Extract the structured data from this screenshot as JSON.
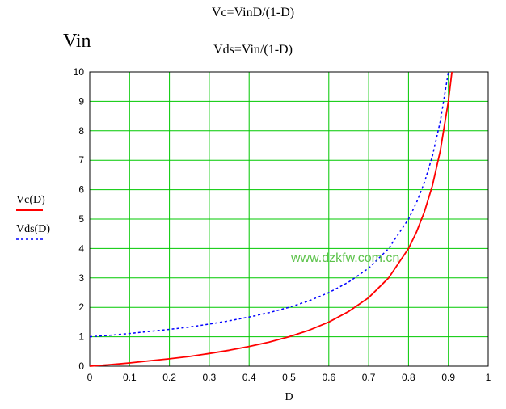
{
  "formulas": [
    "Vc=VinD/(1-D)",
    "Vds=Vin/(1-D)"
  ],
  "watermark": "www.dzkfw.com.cn",
  "colors": {
    "grid": "#00c800",
    "vc": "#ff0000",
    "vds": "#0000ff",
    "watermark": "#5cc24a"
  },
  "chart_data": {
    "type": "line",
    "title": "",
    "xlabel": "D",
    "ylabel": "Vin",
    "xlim": [
      0,
      1
    ],
    "ylim": [
      0,
      10
    ],
    "x_ticks": [
      "0",
      "0.1",
      "0.2",
      "0.3",
      "0.4",
      "0.5",
      "0.6",
      "0.7",
      "0.8",
      "0.9",
      "1"
    ],
    "y_ticks": [
      "0",
      "1",
      "2",
      "3",
      "4",
      "5",
      "6",
      "7",
      "8",
      "9",
      "10"
    ],
    "grid": true,
    "legend_position": "left",
    "x": [
      0,
      0.05,
      0.1,
      0.15,
      0.2,
      0.25,
      0.3,
      0.35,
      0.4,
      0.45,
      0.5,
      0.55,
      0.6,
      0.65,
      0.7,
      0.75,
      0.8,
      0.82,
      0.84,
      0.86,
      0.88,
      0.9,
      0.909
    ],
    "series": [
      {
        "name": "Vc(D)",
        "style": "solid",
        "values": [
          0,
          0.05,
          0.11,
          0.18,
          0.25,
          0.33,
          0.43,
          0.54,
          0.67,
          0.82,
          1,
          1.22,
          1.5,
          1.86,
          2.33,
          3,
          4,
          4.56,
          5.25,
          6.14,
          7.33,
          9,
          10
        ]
      },
      {
        "name": "Vds(D)",
        "style": "dotted",
        "values": [
          1,
          1.05,
          1.11,
          1.18,
          1.25,
          1.33,
          1.43,
          1.54,
          1.67,
          1.82,
          2,
          2.22,
          2.5,
          2.86,
          3.33,
          4,
          5,
          5.56,
          6.25,
          7.14,
          8.33,
          10,
          null
        ]
      }
    ]
  }
}
